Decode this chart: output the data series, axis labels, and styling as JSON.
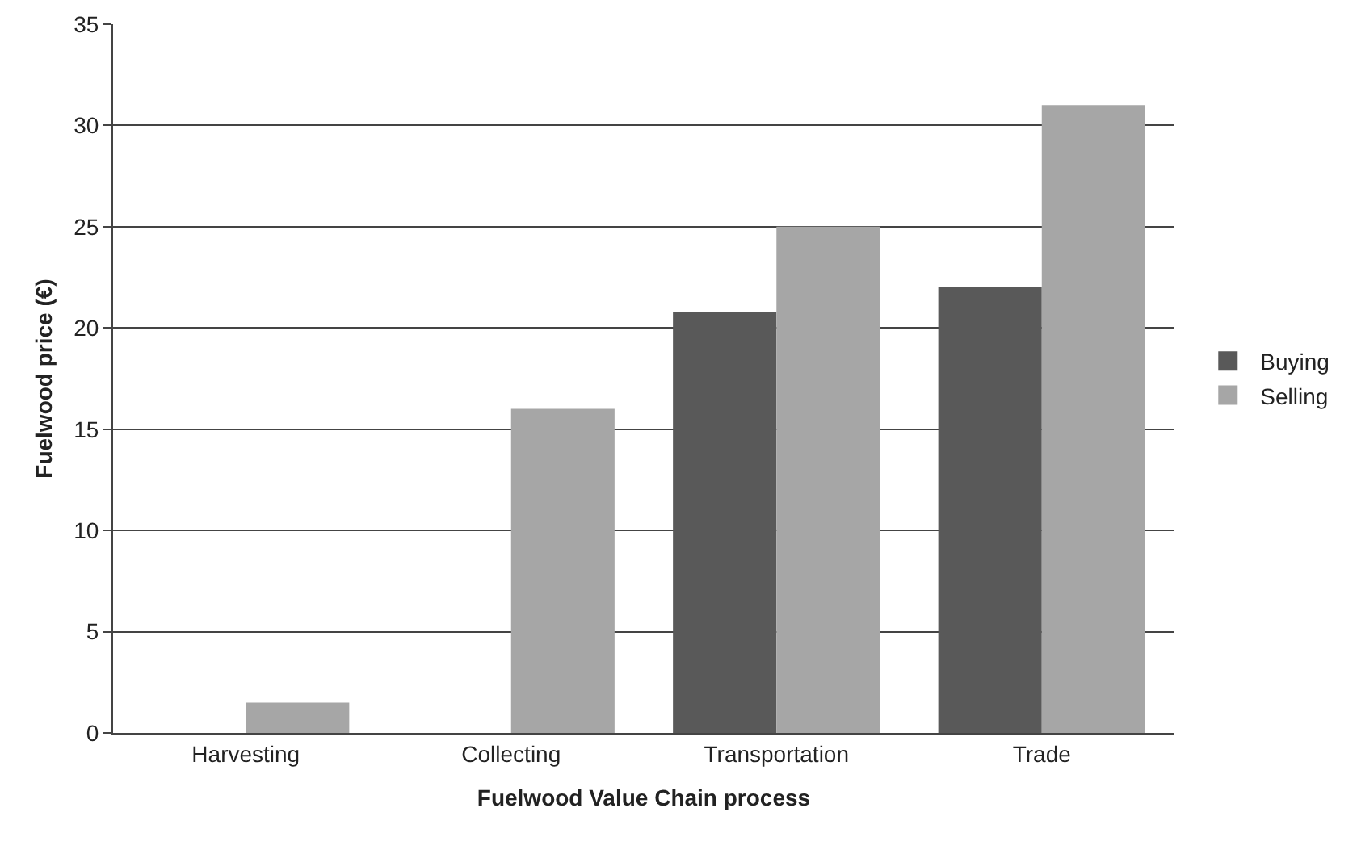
{
  "chart_data": {
    "type": "bar",
    "xlabel": "Fuelwood Value Chain process",
    "ylabel": "Fuelwood price (€)",
    "categories": [
      "Harvesting",
      "Collecting",
      "Transportation",
      "Trade"
    ],
    "series": [
      {
        "name": "Buying",
        "color": "#595959",
        "values": [
          0,
          0,
          20.8,
          22
        ]
      },
      {
        "name": "Selling",
        "color": "#a6a6a6",
        "values": [
          1.5,
          16,
          25,
          31
        ]
      }
    ],
    "ylim": [
      0,
      35
    ],
    "yticks": [
      0,
      5,
      10,
      15,
      20,
      25,
      30,
      35
    ],
    "grid": "y",
    "legend": "right"
  }
}
